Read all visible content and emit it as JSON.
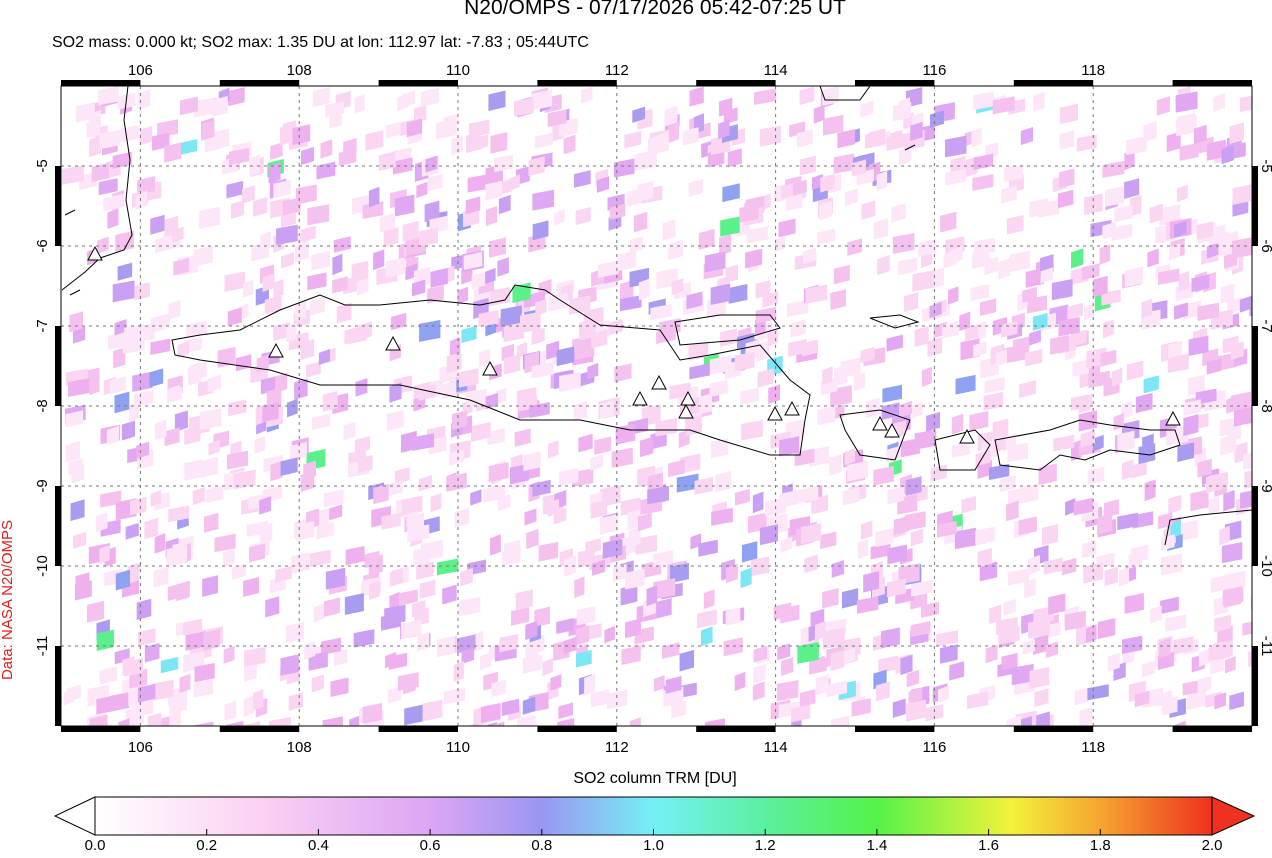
{
  "header": {
    "title": "N20/OMPS - 07/17/2026 05:42-07:25 UT",
    "subtitle": "SO2 mass: 0.000 kt; SO2 max: 1.35 DU at lon: 112.97 lat: -7.83 ; 05:44UTC"
  },
  "map": {
    "xlim": [
      105,
      120
    ],
    "ylim": [
      -12,
      -4
    ],
    "xticks": [
      106,
      108,
      110,
      112,
      114,
      116,
      118
    ],
    "yticks": [
      -5,
      -6,
      -7,
      -8,
      -9,
      -10,
      -11
    ],
    "grid": true
  },
  "colorbar": {
    "label": "SO2 column TRM [DU]",
    "lim": [
      0,
      2
    ],
    "ticks": [
      {
        "value": 0,
        "label": "0.0"
      },
      {
        "value": 0.2,
        "label": "0.2"
      },
      {
        "value": 0.4,
        "label": "0.4"
      },
      {
        "value": 0.6,
        "label": "0.6"
      },
      {
        "value": 0.8,
        "label": "0.8"
      },
      {
        "value": 1,
        "label": "1.0"
      },
      {
        "value": 1.2,
        "label": "1.2"
      },
      {
        "value": 1.4,
        "label": "1.4"
      },
      {
        "value": 1.6,
        "label": "1.6"
      },
      {
        "value": 1.8,
        "label": "1.8"
      },
      {
        "value": 2,
        "label": "2.0"
      }
    ]
  },
  "credit": "Data: NASA N20/OMPS"
}
